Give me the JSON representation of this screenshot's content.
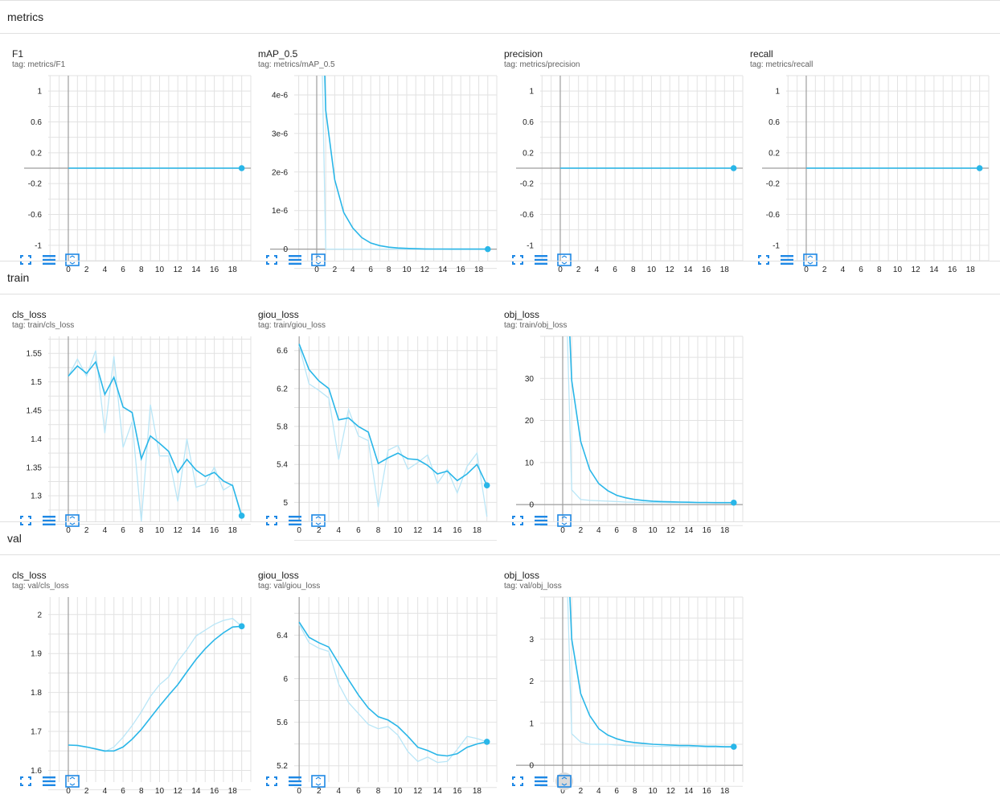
{
  "groups": [
    {
      "title": "metrics",
      "charts": [
        {
          "title": "F1",
          "tag": "tag: metrics/F1",
          "chart_data": {
            "type": "line",
            "xticks": [
              0,
              2,
              4,
              6,
              8,
              10,
              12,
              14,
              16,
              18
            ],
            "yticks": [
              {
                "v": 1,
                "l": "1"
              },
              {
                "v": 0.6,
                "l": "0.6"
              },
              {
                "v": 0.2,
                "l": "0.2"
              },
              {
                "v": -0.2,
                "l": "-0.2"
              },
              {
                "v": -0.6,
                "l": "-0.6"
              },
              {
                "v": -1,
                "l": "-1"
              }
            ],
            "xlim": [
              -2.2,
              20
            ],
            "ylim": [
              -1.2,
              1.2
            ],
            "raw": [
              0,
              0,
              0,
              0,
              0,
              0,
              0,
              0,
              0,
              0,
              0,
              0,
              0,
              0,
              0,
              0,
              0,
              0,
              0,
              0
            ],
            "smoothed": [
              0,
              0,
              0,
              0,
              0,
              0,
              0,
              0,
              0,
              0,
              0,
              0,
              0,
              0,
              0,
              0,
              0,
              0,
              0,
              0
            ]
          }
        },
        {
          "title": "mAP_0.5",
          "tag": "tag: metrics/mAP_0.5",
          "chart_data": {
            "type": "line",
            "xticks": [
              0,
              2,
              4,
              6,
              8,
              10,
              12,
              14,
              16,
              18
            ],
            "yticks": [
              {
                "v": 4e-06,
                "l": "4e-6"
              },
              {
                "v": 3e-06,
                "l": "3e-6"
              },
              {
                "v": 2e-06,
                "l": "2e-6"
              },
              {
                "v": 1e-06,
                "l": "1e-6"
              },
              {
                "v": 0,
                "l": "0"
              }
            ],
            "xlim": [
              -2.5,
              20
            ],
            "ylim": [
              -3e-07,
              4.5e-06
            ],
            "raw": [
              1.2e-05,
              0,
              0,
              0,
              0,
              0,
              0,
              0,
              0,
              0,
              0,
              0,
              0,
              0,
              0,
              0,
              0,
              0,
              0,
              0
            ],
            "smoothed": [
              1.2e-05,
              3.6e-06,
              1.8e-06,
              9.5e-07,
              5.5e-07,
              3e-07,
              1.6e-07,
              9e-08,
              5e-08,
              3e-08,
              2e-08,
              1e-08,
              5e-09,
              3e-09,
              2e-09,
              1e-09,
              1e-09,
              0,
              0,
              0
            ]
          }
        },
        {
          "title": "precision",
          "tag": "tag: metrics/precision",
          "chart_data": {
            "type": "line",
            "xticks": [
              0,
              2,
              4,
              6,
              8,
              10,
              12,
              14,
              16,
              18
            ],
            "yticks": [
              {
                "v": 1,
                "l": "1"
              },
              {
                "v": 0.6,
                "l": "0.6"
              },
              {
                "v": 0.2,
                "l": "0.2"
              },
              {
                "v": -0.2,
                "l": "-0.2"
              },
              {
                "v": -0.6,
                "l": "-0.6"
              },
              {
                "v": -1,
                "l": "-1"
              }
            ],
            "xlim": [
              -2.2,
              20
            ],
            "ylim": [
              -1.2,
              1.2
            ],
            "raw": [
              0,
              0,
              0,
              0,
              0,
              0,
              0,
              0,
              0,
              0,
              0,
              0,
              0,
              0,
              0,
              0,
              0,
              0,
              0,
              0
            ],
            "smoothed": [
              0,
              0,
              0,
              0,
              0,
              0,
              0,
              0,
              0,
              0,
              0,
              0,
              0,
              0,
              0,
              0,
              0,
              0,
              0,
              0
            ]
          }
        },
        {
          "title": "recall",
          "tag": "tag: metrics/recall",
          "chart_data": {
            "type": "line",
            "xticks": [
              0,
              2,
              4,
              6,
              8,
              10,
              12,
              14,
              16,
              18
            ],
            "yticks": [
              {
                "v": 1,
                "l": "1"
              },
              {
                "v": 0.6,
                "l": "0.6"
              },
              {
                "v": 0.2,
                "l": "0.2"
              },
              {
                "v": -0.2,
                "l": "-0.2"
              },
              {
                "v": -0.6,
                "l": "-0.6"
              },
              {
                "v": -1,
                "l": "-1"
              }
            ],
            "xlim": [
              -2.2,
              20
            ],
            "ylim": [
              -1.2,
              1.2
            ],
            "raw": [
              0,
              0,
              0,
              0,
              0,
              0,
              0,
              0,
              0,
              0,
              0,
              0,
              0,
              0,
              0,
              0,
              0,
              0,
              0,
              0
            ],
            "smoothed": [
              0,
              0,
              0,
              0,
              0,
              0,
              0,
              0,
              0,
              0,
              0,
              0,
              0,
              0,
              0,
              0,
              0,
              0,
              0,
              0
            ]
          }
        }
      ]
    },
    {
      "title": "train",
      "charts": [
        {
          "title": "cls_loss",
          "tag": "tag: train/cls_loss",
          "chart_data": {
            "type": "line",
            "xticks": [
              0,
              2,
              4,
              6,
              8,
              10,
              12,
              14,
              16,
              18
            ],
            "yticks": [
              {
                "v": 1.55,
                "l": "1.55"
              },
              {
                "v": 1.5,
                "l": "1.5"
              },
              {
                "v": 1.45,
                "l": "1.45"
              },
              {
                "v": 1.4,
                "l": "1.4"
              },
              {
                "v": 1.35,
                "l": "1.35"
              },
              {
                "v": 1.3,
                "l": "1.3"
              }
            ],
            "xlim": [
              -2.2,
              20
            ],
            "ylim": [
              1.255,
              1.58
            ],
            "raw": [
              1.51,
              1.54,
              1.51,
              1.555,
              1.41,
              1.545,
              1.385,
              1.43,
              1.255,
              1.46,
              1.37,
              1.37,
              1.29,
              1.4,
              1.315,
              1.32,
              1.35,
              1.31,
              1.32,
              1.26
            ],
            "smoothed": [
              1.51,
              1.528,
              1.515,
              1.535,
              1.478,
              1.508,
              1.456,
              1.446,
              1.365,
              1.405,
              1.392,
              1.378,
              1.341,
              1.364,
              1.345,
              1.334,
              1.341,
              1.326,
              1.318,
              1.265
            ]
          }
        },
        {
          "title": "giou_loss",
          "tag": "tag: train/giou_loss",
          "chart_data": {
            "type": "line",
            "xticks": [
              0,
              2,
              4,
              6,
              8,
              10,
              12,
              14,
              16,
              18
            ],
            "yticks": [
              {
                "v": 6.6,
                "l": "6.6"
              },
              {
                "v": 6.2,
                "l": "6.2"
              },
              {
                "v": 5.8,
                "l": "5.8"
              },
              {
                "v": 5.4,
                "l": "5.4"
              },
              {
                "v": 5,
                "l": "5"
              }
            ],
            "xlim": [
              -0.5,
              20
            ],
            "ylim": [
              4.8,
              6.75
            ],
            "raw": [
              6.65,
              6.25,
              6.18,
              6.1,
              5.45,
              5.98,
              5.7,
              5.65,
              4.95,
              5.55,
              5.6,
              5.35,
              5.42,
              5.5,
              5.2,
              5.35,
              5.1,
              5.38,
              5.52,
              4.85
            ],
            "smoothed": [
              6.67,
              6.4,
              6.28,
              6.2,
              5.87,
              5.89,
              5.8,
              5.74,
              5.41,
              5.47,
              5.52,
              5.46,
              5.45,
              5.39,
              5.3,
              5.33,
              5.23,
              5.3,
              5.4,
              5.18
            ]
          }
        },
        {
          "title": "obj_loss",
          "tag": "tag: train/obj_loss",
          "chart_data": {
            "type": "line",
            "xticks": [
              0,
              2,
              4,
              6,
              8,
              10,
              12,
              14,
              16,
              18
            ],
            "yticks": [
              {
                "v": 30,
                "l": "30"
              },
              {
                "v": 20,
                "l": "20"
              },
              {
                "v": 10,
                "l": "10"
              },
              {
                "v": 0,
                "l": "0"
              }
            ],
            "xlim": [
              -2.5,
              20
            ],
            "ylim": [
              -4,
              40
            ],
            "raw": [
              80,
              3.5,
              1.2,
              1,
              0.9,
              0.8,
              0.7,
              0.6,
              0.55,
              0.5,
              0.5,
              0.5,
              0.45,
              0.45,
              0.45,
              0.4,
              0.4,
              0.4,
              0.4,
              0.4
            ],
            "smoothed": [
              80,
              29.5,
              15,
              8.3,
              5,
              3.3,
              2.2,
              1.6,
              1.2,
              0.95,
              0.8,
              0.7,
              0.65,
              0.6,
              0.55,
              0.5,
              0.5,
              0.45,
              0.45,
              0.45
            ]
          }
        }
      ]
    },
    {
      "title": "val",
      "charts": [
        {
          "title": "cls_loss",
          "tag": "tag: val/cls_loss",
          "chart_data": {
            "type": "line",
            "xticks": [
              0,
              2,
              4,
              6,
              8,
              10,
              12,
              14,
              16,
              18
            ],
            "yticks": [
              {
                "v": 2,
                "l": "2"
              },
              {
                "v": 1.9,
                "l": "1.9"
              },
              {
                "v": 1.8,
                "l": "1.8"
              },
              {
                "v": 1.7,
                "l": "1.7"
              },
              {
                "v": 1.6,
                "l": "1.6"
              }
            ],
            "xlim": [
              -2.2,
              20
            ],
            "ylim": [
              1.57,
              2.045
            ],
            "raw": [
              1.665,
              1.665,
              1.66,
              1.655,
              1.648,
              1.66,
              1.685,
              1.715,
              1.75,
              1.79,
              1.82,
              1.84,
              1.88,
              1.91,
              1.945,
              1.96,
              1.975,
              1.985,
              1.99,
              1.97
            ],
            "smoothed": [
              1.665,
              1.664,
              1.66,
              1.655,
              1.65,
              1.65,
              1.66,
              1.68,
              1.705,
              1.735,
              1.765,
              1.793,
              1.82,
              1.853,
              1.885,
              1.912,
              1.935,
              1.953,
              1.968,
              1.97
            ]
          }
        },
        {
          "title": "giou_loss",
          "tag": "tag: val/giou_loss",
          "chart_data": {
            "type": "line",
            "xticks": [
              0,
              2,
              4,
              6,
              8,
              10,
              12,
              14,
              16,
              18
            ],
            "yticks": [
              {
                "v": 6.4,
                "l": "6.4"
              },
              {
                "v": 6,
                "l": "6"
              },
              {
                "v": 5.6,
                "l": "5.6"
              },
              {
                "v": 5.2,
                "l": "5.2"
              }
            ],
            "xlim": [
              -0.5,
              20
            ],
            "ylim": [
              5.05,
              6.75
            ],
            "raw": [
              6.5,
              6.33,
              6.28,
              6.25,
              5.95,
              5.78,
              5.68,
              5.58,
              5.54,
              5.56,
              5.48,
              5.33,
              5.24,
              5.28,
              5.23,
              5.24,
              5.35,
              5.47,
              5.45,
              5.42
            ],
            "smoothed": [
              6.52,
              6.38,
              6.33,
              6.29,
              6.14,
              5.99,
              5.85,
              5.73,
              5.65,
              5.62,
              5.56,
              5.47,
              5.37,
              5.34,
              5.3,
              5.29,
              5.31,
              5.37,
              5.4,
              5.42
            ]
          }
        },
        {
          "title": "obj_loss",
          "tag": "tag: val/obj_loss",
          "chart_data": {
            "type": "line",
            "xticks": [
              0,
              2,
              4,
              6,
              8,
              10,
              12,
              14,
              16,
              18
            ],
            "yticks": [
              {
                "v": 3,
                "l": "3"
              },
              {
                "v": 2,
                "l": "2"
              },
              {
                "v": 1,
                "l": "1"
              },
              {
                "v": 0,
                "l": "0"
              }
            ],
            "xlim": [
              -2.5,
              20
            ],
            "ylim": [
              -0.4,
              4
            ],
            "raw": [
              8,
              0.75,
              0.55,
              0.5,
              0.5,
              0.5,
              0.48,
              0.47,
              0.46,
              0.46,
              0.45,
              0.45,
              0.45,
              0.44,
              0.44,
              0.44,
              0.43,
              0.43,
              0.43,
              0.43
            ],
            "smoothed": [
              8,
              3,
              1.7,
              1.18,
              0.87,
              0.72,
              0.63,
              0.57,
              0.54,
              0.52,
              0.5,
              0.49,
              0.48,
              0.47,
              0.47,
              0.46,
              0.45,
              0.45,
              0.44,
              0.44
            ]
          }
        }
      ]
    }
  ],
  "colors": {
    "accent": "#29b6e8",
    "raw": "#b9e6f7",
    "grid": "#e2e2e2",
    "axis": "#9e9e9e",
    "icon": "#1e88e5"
  },
  "icons": [
    "fullscreen-icon",
    "log-scale-icon",
    "fit-domain-icon"
  ]
}
